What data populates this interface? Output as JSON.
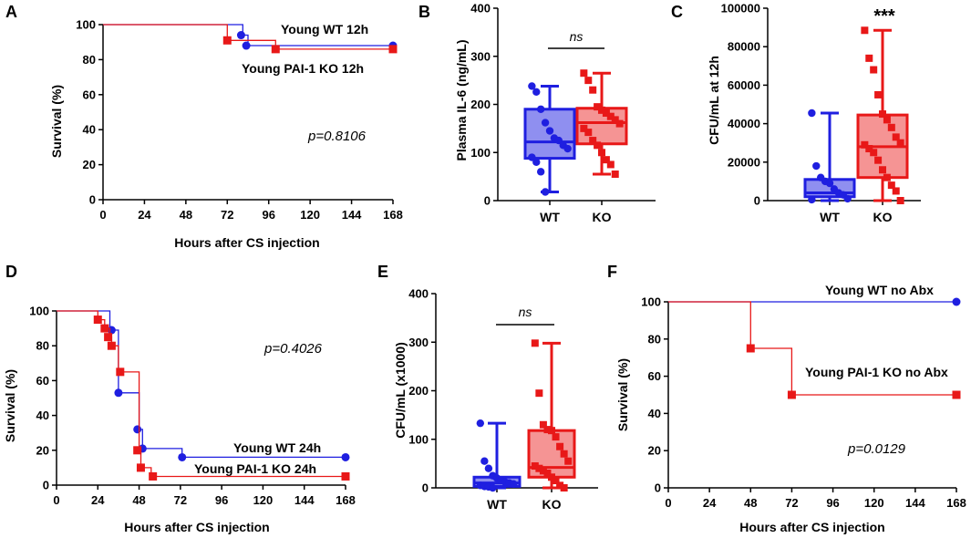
{
  "colors": {
    "blue": "#1f1fe0",
    "red": "#e81818",
    "blue_fill": "#8f8ff0",
    "red_fill": "#f59494"
  },
  "chart_data": [
    {
      "id": "A",
      "type": "line",
      "panel_label": "A",
      "xlabel": "Hours after CS injection",
      "ylabel": "Survival (%)",
      "xlim": [
        0,
        168
      ],
      "ylim": [
        0,
        100
      ],
      "xticks": [
        0,
        24,
        48,
        72,
        96,
        120,
        144,
        168
      ],
      "yticks": [
        0,
        20,
        40,
        60,
        80,
        100
      ],
      "pvalue": "p=0.8106",
      "series": [
        {
          "name": "Young WT 12h",
          "color": "blue",
          "steps": [
            [
              0,
              100
            ],
            [
              81,
              100
            ],
            [
              81,
              94
            ],
            [
              84,
              94
            ],
            [
              84,
              88
            ],
            [
              168,
              88
            ]
          ],
          "markers": [
            [
              80,
              94
            ],
            [
              83,
              88
            ],
            [
              168,
              88
            ]
          ]
        },
        {
          "name": "Young PAI-1 KO 12h",
          "color": "red",
          "steps": [
            [
              0,
              100
            ],
            [
              72,
              100
            ],
            [
              72,
              91
            ],
            [
              100,
              91
            ],
            [
              100,
              86
            ],
            [
              168,
              86
            ]
          ],
          "markers": [
            [
              72,
              91
            ],
            [
              100,
              86
            ],
            [
              168,
              86
            ]
          ]
        }
      ]
    },
    {
      "id": "B",
      "type": "box",
      "panel_label": "B",
      "ylabel": "Plasma IL-6 (ng/mL)",
      "ylim": [
        0,
        400
      ],
      "yticks": [
        0,
        100,
        200,
        300,
        400
      ],
      "categories": [
        "WT",
        "KO"
      ],
      "significance": "ns",
      "groups": [
        {
          "name": "WT",
          "color": "blue",
          "min": 18,
          "q1": 88,
          "median": 122,
          "q3": 190,
          "max": 238,
          "points": [
            238,
            226,
            190,
            162,
            145,
            130,
            125,
            115,
            108,
            90,
            80,
            60,
            18
          ]
        },
        {
          "name": "KO",
          "color": "red",
          "min": 55,
          "q1": 118,
          "median": 162,
          "q3": 192,
          "max": 265,
          "points": [
            265,
            250,
            230,
            195,
            188,
            182,
            175,
            168,
            160,
            150,
            142,
            125,
            115,
            100,
            85,
            75,
            55
          ]
        }
      ]
    },
    {
      "id": "C",
      "type": "box",
      "panel_label": "C",
      "ylabel": "CFU/mL at 12h",
      "ylim": [
        0,
        100000
      ],
      "yticks": [
        0,
        20000,
        40000,
        60000,
        80000,
        100000
      ],
      "categories": [
        "WT",
        "KO"
      ],
      "significance": "***",
      "groups": [
        {
          "name": "WT",
          "color": "blue",
          "min": 0,
          "q1": 2000,
          "median": 4000,
          "q3": 11000,
          "max": 45500,
          "points": [
            45500,
            18000,
            12000,
            10000,
            9000,
            6000,
            4000,
            3000,
            1000,
            500
          ]
        },
        {
          "name": "KO",
          "color": "red",
          "min": 0,
          "q1": 12000,
          "median": 28000,
          "q3": 44500,
          "max": 88500,
          "points": [
            88500,
            74000,
            68000,
            55000,
            45000,
            42000,
            38000,
            33000,
            30000,
            29000,
            27000,
            25000,
            21000,
            16000,
            12000,
            8000,
            5000,
            0
          ]
        }
      ]
    },
    {
      "id": "D",
      "type": "line",
      "panel_label": "D",
      "xlabel": "Hours after CS injection",
      "ylabel": "Survival (%)",
      "xlim": [
        0,
        168
      ],
      "ylim": [
        0,
        100
      ],
      "xticks": [
        0,
        24,
        48,
        72,
        96,
        120,
        144,
        168
      ],
      "yticks": [
        0,
        20,
        40,
        60,
        80,
        100
      ],
      "pvalue": "p=0.4026",
      "series": [
        {
          "name": "Young WT 24h",
          "color": "blue",
          "steps": [
            [
              0,
              100
            ],
            [
              31,
              100
            ],
            [
              31,
              89
            ],
            [
              36,
              89
            ],
            [
              36,
              53
            ],
            [
              48,
              53
            ],
            [
              48,
              32
            ],
            [
              50,
              32
            ],
            [
              50,
              21
            ],
            [
              73,
              21
            ],
            [
              73,
              16
            ],
            [
              168,
              16
            ]
          ],
          "markers": [
            [
              32,
              89
            ],
            [
              36,
              53
            ],
            [
              47,
              32
            ],
            [
              50,
              21
            ],
            [
              73,
              16
            ],
            [
              168,
              16
            ]
          ]
        },
        {
          "name": "Young PAI-1 KO 24h",
          "color": "red",
          "steps": [
            [
              0,
              100
            ],
            [
              24,
              100
            ],
            [
              24,
              95
            ],
            [
              28,
              95
            ],
            [
              28,
              90
            ],
            [
              31,
              90
            ],
            [
              31,
              85
            ],
            [
              32,
              85
            ],
            [
              32,
              80
            ],
            [
              36,
              80
            ],
            [
              36,
              65
            ],
            [
              48,
              65
            ],
            [
              48,
              20
            ],
            [
              49,
              20
            ],
            [
              49,
              10
            ],
            [
              55,
              10
            ],
            [
              55,
              5
            ],
            [
              168,
              5
            ]
          ],
          "markers": [
            [
              24,
              95
            ],
            [
              28,
              90
            ],
            [
              30,
              85
            ],
            [
              32,
              80
            ],
            [
              37,
              65
            ],
            [
              47,
              20
            ],
            [
              49,
              10
            ],
            [
              56,
              5
            ],
            [
              168,
              5
            ]
          ]
        }
      ]
    },
    {
      "id": "E",
      "type": "box",
      "panel_label": "E",
      "ylabel": "CFU/mL (x1000)",
      "ylim": [
        0,
        400
      ],
      "yticks": [
        0,
        100,
        200,
        300,
        400
      ],
      "categories": [
        "WT",
        "KO"
      ],
      "significance": "ns",
      "groups": [
        {
          "name": "WT",
          "color": "blue",
          "min": 0,
          "q1": 3,
          "median": 10,
          "q3": 22,
          "max": 133,
          "points": [
            133,
            55,
            40,
            25,
            20,
            15,
            12,
            10,
            8,
            5,
            3,
            2,
            0
          ]
        },
        {
          "name": "KO",
          "color": "red",
          "min": 0,
          "q1": 22,
          "median": 42,
          "q3": 118,
          "max": 298,
          "points": [
            298,
            195,
            130,
            120,
            118,
            105,
            85,
            70,
            55,
            45,
            40,
            35,
            30,
            22,
            15,
            5,
            0
          ]
        }
      ]
    },
    {
      "id": "F",
      "type": "line",
      "panel_label": "F",
      "xlabel": "Hours after CS injection",
      "ylabel": "Survival (%)",
      "xlim": [
        0,
        168
      ],
      "ylim": [
        0,
        100
      ],
      "xticks": [
        0,
        24,
        48,
        72,
        96,
        120,
        144,
        168
      ],
      "yticks": [
        0,
        20,
        40,
        60,
        80,
        100
      ],
      "pvalue": "p=0.0129",
      "series": [
        {
          "name": "Young WT no Abx",
          "color": "blue",
          "steps": [
            [
              0,
              100
            ],
            [
              168,
              100
            ]
          ],
          "markers": [
            [
              168,
              100
            ]
          ]
        },
        {
          "name": "Young PAI-1 KO no Abx",
          "color": "red",
          "steps": [
            [
              0,
              100
            ],
            [
              48,
              100
            ],
            [
              48,
              75
            ],
            [
              72,
              75
            ],
            [
              72,
              50
            ],
            [
              168,
              50
            ]
          ],
          "markers": [
            [
              48,
              75
            ],
            [
              72,
              50
            ],
            [
              168,
              50
            ]
          ]
        }
      ]
    }
  ]
}
